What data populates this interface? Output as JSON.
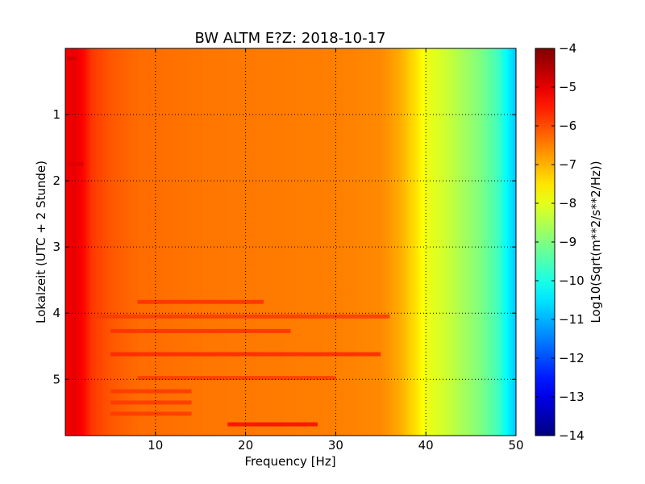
{
  "chart_data": {
    "type": "heatmap",
    "title": "BW ALTM E?Z: 2018-10-17",
    "xlabel": "Frequency [Hz]",
    "ylabel": "Lokalzeit (UTC + 2 Stunde)",
    "xlim": [
      0,
      50
    ],
    "ylim": [
      5.85,
      0
    ],
    "x_ticks": [
      10,
      20,
      30,
      40,
      50
    ],
    "y_ticks": [
      1,
      2,
      3,
      4,
      5
    ],
    "grid": true,
    "colormap": "jet",
    "colorbar": {
      "label": "Log10(Sqrt(m**2/s**2/Hz))",
      "range": [
        -14,
        -4
      ],
      "ticks": [
        -4,
        -5,
        -6,
        -7,
        -8,
        -9,
        -10,
        -11,
        -12,
        -13,
        -14
      ]
    },
    "frequency_profile": [
      {
        "hz": 0,
        "value": -5.2
      },
      {
        "hz": 1,
        "value": -5.0
      },
      {
        "hz": 2,
        "value": -5.3
      },
      {
        "hz": 3,
        "value": -5.8
      },
      {
        "hz": 5,
        "value": -6.1
      },
      {
        "hz": 8,
        "value": -6.3
      },
      {
        "hz": 15,
        "value": -6.4
      },
      {
        "hz": 30,
        "value": -6.5
      },
      {
        "hz": 35,
        "value": -6.6
      },
      {
        "hz": 37,
        "value": -6.9
      },
      {
        "hz": 39,
        "value": -7.5
      },
      {
        "hz": 40,
        "value": -7.9
      },
      {
        "hz": 42,
        "value": -8.2
      },
      {
        "hz": 44,
        "value": -8.6
      },
      {
        "hz": 46,
        "value": -9.0
      },
      {
        "hz": 48,
        "value": -9.6
      },
      {
        "hz": 49,
        "value": -10.3
      },
      {
        "hz": 50,
        "value": -10.8
      }
    ],
    "bands": [
      {
        "t": 0.15,
        "f_from": 0.2,
        "f_to": 1.3,
        "value": -4.8
      },
      {
        "t": 1.75,
        "f_from": 0.3,
        "f_to": 2.0,
        "value": -4.9
      },
      {
        "t": 3.83,
        "f_from": 8.0,
        "f_to": 22.0,
        "value": -5.7
      },
      {
        "t": 4.05,
        "f_from": 3.0,
        "f_to": 36.0,
        "value": -5.8
      },
      {
        "t": 4.27,
        "f_from": 5.0,
        "f_to": 25.0,
        "value": -5.7
      },
      {
        "t": 4.62,
        "f_from": 5.0,
        "f_to": 35.0,
        "value": -5.6
      },
      {
        "t": 4.98,
        "f_from": 8.0,
        "f_to": 30.0,
        "value": -5.8
      },
      {
        "t": 5.18,
        "f_from": 5.0,
        "f_to": 14.0,
        "value": -5.8
      },
      {
        "t": 5.35,
        "f_from": 5.0,
        "f_to": 14.0,
        "value": -5.8
      },
      {
        "t": 5.52,
        "f_from": 5.0,
        "f_to": 14.0,
        "value": -5.8
      },
      {
        "t": 5.68,
        "f_from": 18.0,
        "f_to": 28.0,
        "value": -5.3
      }
    ]
  }
}
